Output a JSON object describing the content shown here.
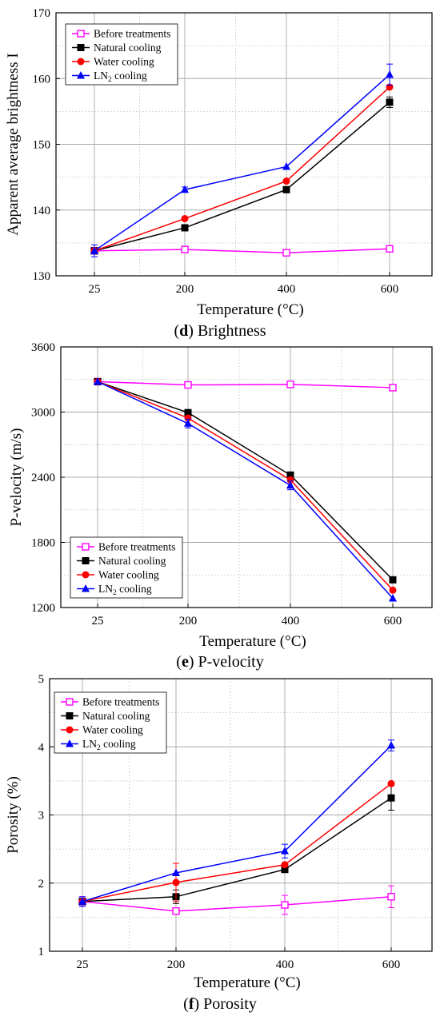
{
  "chart_data": [
    {
      "type": "line",
      "caption_letter": "d",
      "caption_text": "Brightness",
      "xlabel": "Temperature (°C)",
      "ylabel": "Apparent average brightness I",
      "categories": [
        "25",
        "200",
        "400",
        "600"
      ],
      "ylim": [
        130,
        170
      ],
      "yticks": [
        130,
        140,
        150,
        160,
        170
      ],
      "grid": true,
      "legend_position": "top-left",
      "series": [
        {
          "name": "Before treatments",
          "values": [
            133.8,
            134.0,
            133.5,
            134.1
          ],
          "errors": [
            0,
            0,
            0,
            0
          ],
          "color": "#ff00ff",
          "marker": "square-open"
        },
        {
          "name": "Natural cooling",
          "values": [
            133.8,
            137.3,
            143.1,
            156.4
          ],
          "errors": [
            0,
            0,
            0,
            0.8
          ],
          "color": "#000000",
          "marker": "square"
        },
        {
          "name": "Water cooling",
          "values": [
            133.8,
            138.7,
            144.4,
            158.7
          ],
          "errors": [
            0,
            0,
            0,
            0
          ],
          "color": "#ff0000",
          "marker": "circle"
        },
        {
          "name": "LN2 cooling",
          "values": [
            133.8,
            143.1,
            146.6,
            160.6
          ],
          "errors": [
            0.9,
            0.4,
            0,
            1.6
          ],
          "color": "#0000ff",
          "marker": "triangle"
        }
      ]
    },
    {
      "type": "line",
      "caption_letter": "e",
      "caption_text": "P-velocity",
      "xlabel": "Temperature (°C)",
      "ylabel": "P-velocity (m/s)",
      "categories": [
        "25",
        "200",
        "400",
        "600"
      ],
      "ylim": [
        1200,
        3600
      ],
      "yticks": [
        1200,
        1800,
        2400,
        3000,
        3600
      ],
      "grid": true,
      "legend_position": "bottom-left",
      "series": [
        {
          "name": "Before treatments",
          "values": [
            3280,
            3250,
            3255,
            3225
          ],
          "errors": [
            0,
            0,
            0,
            0
          ],
          "color": "#ff00ff",
          "marker": "square-open"
        },
        {
          "name": "Natural cooling",
          "values": [
            3280,
            2995,
            2420,
            1455
          ],
          "errors": [
            0,
            0,
            0,
            0
          ],
          "color": "#000000",
          "marker": "square"
        },
        {
          "name": "Water cooling",
          "values": [
            3280,
            2945,
            2375,
            1360
          ],
          "errors": [
            0,
            0,
            0,
            0
          ],
          "color": "#ff0000",
          "marker": "circle"
        },
        {
          "name": "LN2 cooling",
          "values": [
            3280,
            2895,
            2325,
            1285
          ],
          "errors": [
            0,
            40,
            40,
            0
          ],
          "color": "#0000ff",
          "marker": "triangle"
        }
      ]
    },
    {
      "type": "line",
      "caption_letter": "f",
      "caption_text": "Porosity",
      "xlabel": "Temperature (°C)",
      "ylabel": "Porosity (%)",
      "categories": [
        "25",
        "200",
        "400",
        "600"
      ],
      "ylim": [
        1,
        5
      ],
      "yticks": [
        1,
        2,
        3,
        4,
        5
      ],
      "grid": true,
      "legend_position": "top-left",
      "series": [
        {
          "name": "Before treatments",
          "values": [
            1.73,
            1.59,
            1.68,
            1.8
          ],
          "errors": [
            0.07,
            0,
            0.14,
            0.16
          ],
          "color": "#ff00ff",
          "marker": "square-open"
        },
        {
          "name": "Natural cooling",
          "values": [
            1.73,
            1.8,
            2.2,
            3.25
          ],
          "errors": [
            0,
            0.1,
            0,
            0.18
          ],
          "color": "#000000",
          "marker": "square"
        },
        {
          "name": "Water cooling",
          "values": [
            1.73,
            2.01,
            2.27,
            3.46
          ],
          "errors": [
            0,
            0.28,
            0,
            0
          ],
          "color": "#ff0000",
          "marker": "circle"
        },
        {
          "name": "LN2 cooling",
          "values": [
            1.73,
            2.15,
            2.47,
            4.02
          ],
          "errors": [
            0.07,
            0,
            0.1,
            0.08
          ],
          "color": "#0000ff",
          "marker": "triangle"
        }
      ]
    }
  ]
}
